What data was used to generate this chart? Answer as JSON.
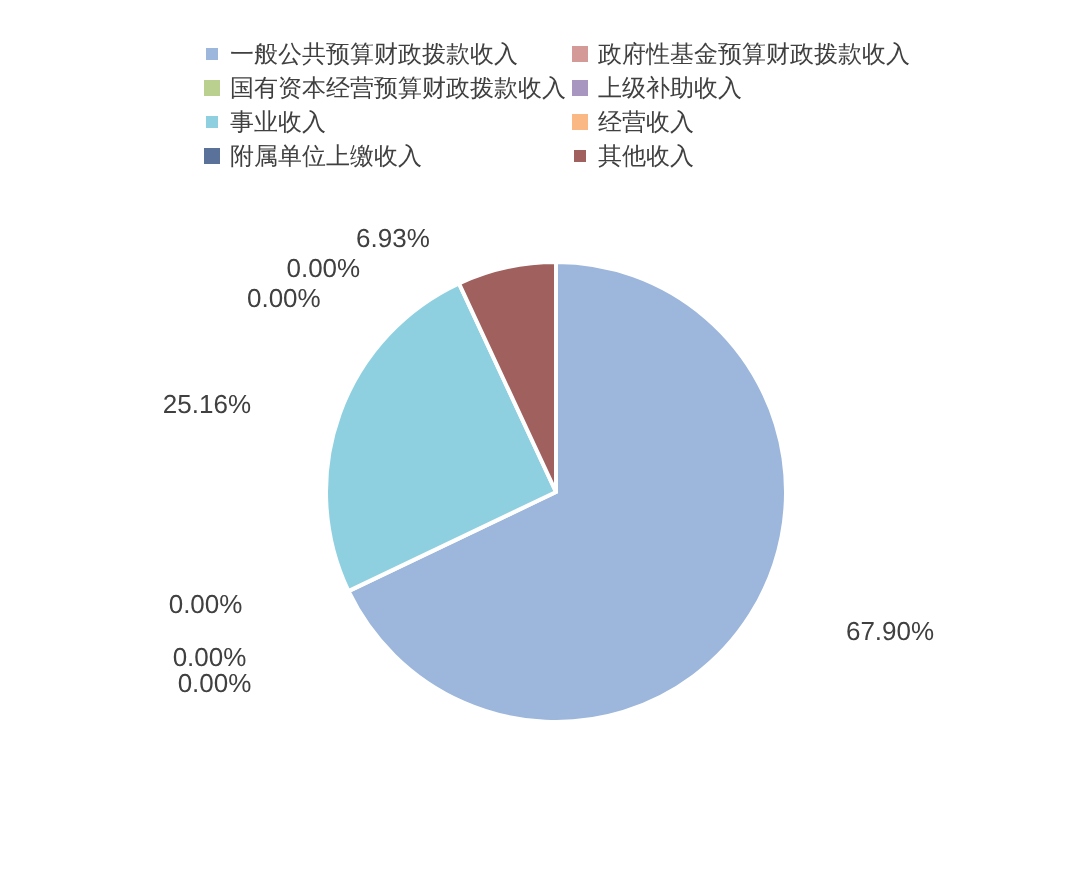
{
  "chart_data": {
    "type": "pie",
    "categories": [
      "一般公共预算财政拨款收入",
      "政府性基金预算财政拨款收入",
      "国有资本经营预算财政拨款收入",
      "上级补助收入",
      "事业收入",
      "经营收入",
      "附属单位上缴收入",
      "其他收入"
    ],
    "values": [
      67.9,
      0.0,
      0.0,
      0.0,
      25.16,
      0.0,
      0.0,
      6.93
    ],
    "colors": [
      "#9cb6dc",
      "#d49a98",
      "#b9d08e",
      "#a896c0",
      "#8fd0e0",
      "#f9b884",
      "#5a7299",
      "#a0605e"
    ],
    "value_labels": [
      "67.90%",
      "0.00%",
      "0.00%",
      "0.00%",
      "25.16%",
      "0.00%",
      "0.00%",
      "6.93%"
    ],
    "legend": "top"
  }
}
